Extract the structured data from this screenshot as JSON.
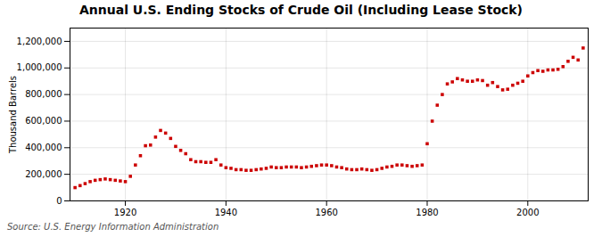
{
  "chart_data": {
    "type": "scatter",
    "title": "Annual U.S. Ending Stocks of Crude Oil (Including Lease Stock)",
    "ylabel": "Thousand Barrels",
    "source": "Source: U.S. Energy Information Administration",
    "color": "#cc0000",
    "marker": "square",
    "grid": true,
    "xlim": [
      1909,
      2012
    ],
    "ylim": [
      0,
      1300000
    ],
    "xticks": [
      1920,
      1940,
      1960,
      1980,
      2000
    ],
    "yticks": [
      0,
      {
        "value": 200000,
        "label": "200,000"
      },
      {
        "value": 400000,
        "label": "400,000"
      },
      {
        "value": 600000,
        "label": "600,000"
      },
      {
        "value": 800000,
        "label": "800,000"
      },
      {
        "value": 1000000,
        "label": "1,000,000"
      },
      {
        "value": 1200000,
        "label": "1,200,000"
      }
    ],
    "x": [
      1910,
      1911,
      1912,
      1913,
      1914,
      1915,
      1916,
      1917,
      1918,
      1919,
      1920,
      1921,
      1922,
      1923,
      1924,
      1925,
      1926,
      1927,
      1928,
      1929,
      1930,
      1931,
      1932,
      1933,
      1934,
      1935,
      1936,
      1937,
      1938,
      1939,
      1940,
      1941,
      1942,
      1943,
      1944,
      1945,
      1946,
      1947,
      1948,
      1949,
      1950,
      1951,
      1952,
      1953,
      1954,
      1955,
      1956,
      1957,
      1958,
      1959,
      1960,
      1961,
      1962,
      1963,
      1964,
      1965,
      1966,
      1967,
      1968,
      1969,
      1970,
      1971,
      1972,
      1973,
      1974,
      1975,
      1976,
      1977,
      1978,
      1979,
      1980,
      1981,
      1982,
      1983,
      1984,
      1985,
      1986,
      1987,
      1988,
      1989,
      1990,
      1991,
      1992,
      1993,
      1994,
      1995,
      1996,
      1997,
      1998,
      1999,
      2000,
      2001,
      2002,
      2003,
      2004,
      2005,
      2006,
      2007,
      2008,
      2009,
      2010,
      2011
    ],
    "values": [
      100000,
      115000,
      130000,
      145000,
      155000,
      160000,
      165000,
      160000,
      155000,
      150000,
      145000,
      185000,
      270000,
      340000,
      415000,
      420000,
      480000,
      530000,
      510000,
      470000,
      410000,
      380000,
      355000,
      310000,
      295000,
      295000,
      290000,
      290000,
      310000,
      270000,
      250000,
      245000,
      235000,
      235000,
      230000,
      230000,
      235000,
      240000,
      245000,
      255000,
      250000,
      250000,
      255000,
      255000,
      255000,
      250000,
      255000,
      260000,
      265000,
      270000,
      270000,
      265000,
      255000,
      250000,
      240000,
      235000,
      235000,
      240000,
      235000,
      230000,
      235000,
      245000,
      255000,
      260000,
      270000,
      270000,
      265000,
      260000,
      265000,
      270000,
      430000,
      600000,
      720000,
      800000,
      880000,
      895000,
      920000,
      910000,
      900000,
      900000,
      910000,
      905000,
      870000,
      890000,
      860000,
      835000,
      840000,
      870000,
      885000,
      900000,
      940000,
      965000,
      980000,
      975000,
      985000,
      985000,
      990000,
      1010000,
      1050000,
      1080000,
      1060000,
      1150000
    ]
  }
}
